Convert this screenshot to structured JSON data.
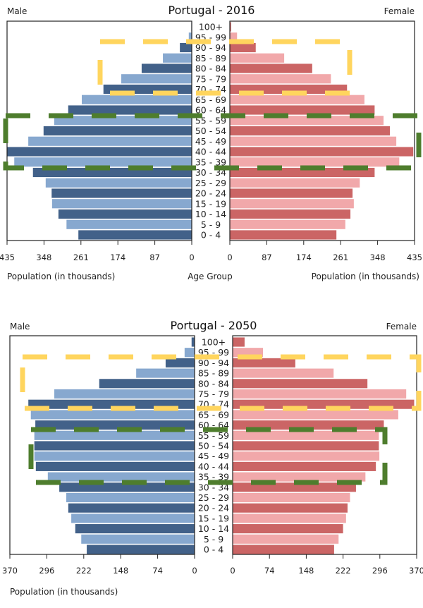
{
  "colors": {
    "male_dark": "#426189",
    "male_light": "#87a8cf",
    "female_dark": "#cb6565",
    "female_light": "#f1a8aa",
    "highlight_yellow": "#ffd55e",
    "highlight_green": "#4e7d2d"
  },
  "chart_data": [
    {
      "type": "bar",
      "orientation": "horizontal",
      "subtype": "population-pyramid",
      "title": "Portugal - 2016",
      "left_label": "Male",
      "right_label": "Female",
      "center_label": "Age Group",
      "xlabel_left": "Population (in thousands)",
      "xlabel_right": "Population (in thousands)",
      "xlim": [
        0,
        435
      ],
      "xticks": [
        0,
        87,
        174,
        261,
        348,
        435
      ],
      "categories": [
        "0 - 4",
        "5 - 9",
        "10 - 14",
        "15 - 19",
        "20 - 24",
        "25 - 29",
        "30 - 34",
        "35 - 39",
        "40 - 44",
        "45 - 49",
        "50 - 54",
        "55 - 59",
        "60 - 64",
        "65 - 69",
        "70 - 74",
        "75 - 79",
        "80 - 84",
        "85 - 89",
        "90 - 94",
        "95 - 99",
        "100+"
      ],
      "series": [
        {
          "name": "Male",
          "values": [
            267,
            295,
            314,
            329,
            330,
            344,
            374,
            418,
            435,
            385,
            349,
            324,
            291,
            259,
            208,
            166,
            118,
            68,
            28,
            7,
            1
          ]
        },
        {
          "name": "Female",
          "values": [
            251,
            272,
            284,
            292,
            289,
            306,
            341,
            399,
            432,
            392,
            377,
            362,
            341,
            317,
            276,
            238,
            194,
            128,
            61,
            17,
            3
          ]
        }
      ],
      "annotations": [
        {
          "type": "dashed-rect",
          "color": "yellow",
          "from_category": "70 - 74",
          "to_category": "90 - 94"
        },
        {
          "type": "dashed-rect",
          "color": "green",
          "from_category": "35 - 39",
          "to_category": "55 - 59"
        }
      ]
    },
    {
      "type": "bar",
      "orientation": "horizontal",
      "subtype": "population-pyramid",
      "title": "Portugal - 2050",
      "left_label": "Male",
      "right_label": "Female",
      "center_label": "",
      "xlabel_left": "Population (in thousands)",
      "xlabel_right": "",
      "xlim": [
        0,
        370
      ],
      "xticks": [
        0,
        74,
        148,
        222,
        296,
        370
      ],
      "categories": [
        "0 - 4",
        "5 - 9",
        "10 - 14",
        "15 - 19",
        "20 - 24",
        "25 - 29",
        "30 - 34",
        "35 - 39",
        "40 - 44",
        "45 - 49",
        "50 - 54",
        "55 - 59",
        "60 - 64",
        "65 - 69",
        "70 - 74",
        "75 - 79",
        "80 - 84",
        "85 - 89",
        "90 - 94",
        "95 - 99",
        "100+"
      ],
      "series": [
        {
          "name": "Male",
          "values": [
            216,
            227,
            239,
            247,
            253,
            257,
            271,
            294,
            318,
            321,
            321,
            321,
            319,
            328,
            333,
            281,
            191,
            117,
            58,
            20,
            6
          ]
        },
        {
          "name": "Female",
          "values": [
            204,
            213,
            222,
            228,
            231,
            236,
            248,
            267,
            288,
            295,
            294,
            294,
            304,
            333,
            365,
            349,
            271,
            203,
            126,
            61,
            24
          ]
        }
      ],
      "annotations": [
        {
          "type": "dashed-rect",
          "color": "yellow",
          "from_category": "70 - 74",
          "to_category": "90 - 94"
        },
        {
          "type": "dashed-rect",
          "color": "green",
          "from_category": "35 - 39",
          "to_category": "55 - 59"
        }
      ]
    }
  ]
}
